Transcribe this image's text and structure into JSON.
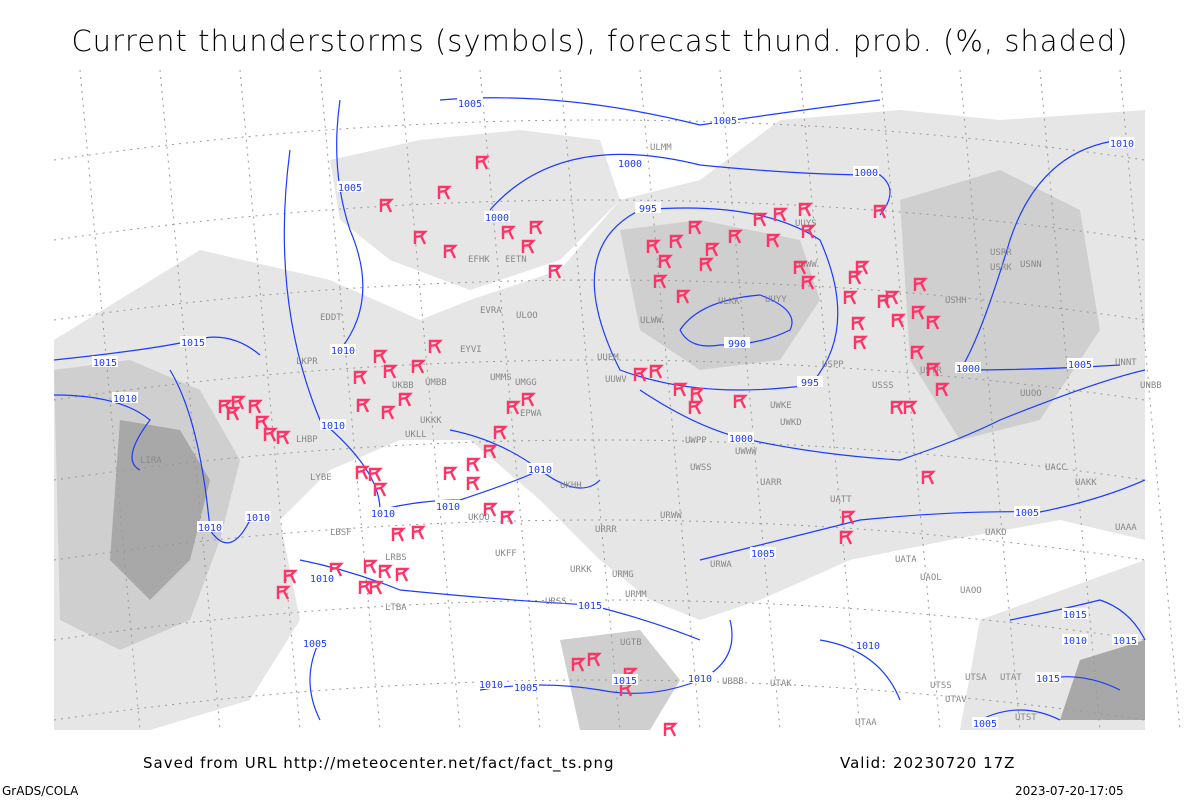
{
  "title": "Current thunderstorms (symbols), forecast thund. prob. (%, shaded)",
  "saved_from": "Saved from URL http://meteocenter.net/fact/fact_ts.png",
  "valid": "Valid: 20230720 17Z",
  "credit": "GrADS/COLA",
  "timestamp": "2023-07-20-17:05",
  "colors": {
    "isobar": "#1a3cff",
    "storm": "#ff3366",
    "shade_light": "#e6e6e6",
    "shade_mid": "#cfcfcf",
    "shade_dark": "#a8a8a8",
    "borders": "#9a9a9a"
  },
  "storm_symbol": "thunderstorm-flag-icon",
  "isobar_labels": [
    "1005",
    "1005",
    "1000",
    "1000",
    "1010",
    "1005",
    "1000",
    "995",
    "990",
    "995",
    "1000",
    "1005",
    "1015",
    "1015",
    "1010",
    "1010",
    "1010",
    "1000",
    "1010",
    "1010",
    "1010",
    "1010",
    "1010",
    "1005",
    "1005",
    "1010",
    "1015",
    "1005",
    "1010",
    "1015",
    "1010",
    "1015",
    "1015",
    "1010",
    "1005",
    "1015",
    "1010",
    "1005"
  ],
  "stations": [
    "ULMM",
    "ULOO",
    "UUYS",
    "ULWW",
    "ULKK",
    "UUYY",
    "UUWW",
    "UUEM",
    "USPP",
    "USSS",
    "USRR",
    "USRK",
    "USNN",
    "USHH",
    "USTR",
    "UUOO",
    "UUWV",
    "UWWW",
    "UWKE",
    "UWKD",
    "UWPP",
    "UWSS",
    "UARR",
    "UATT",
    "UACC",
    "UAKK",
    "UAAA",
    "UATA",
    "UAOL",
    "UAOO",
    "UAKD",
    "UMMS",
    "UMBB",
    "UMGG",
    "UKBB",
    "UKLL",
    "UKKK",
    "UKOO",
    "UKFF",
    "UKHH",
    "URKK",
    "URRR",
    "URWW",
    "URWA",
    "URMM",
    "URMG",
    "URSS",
    "UBBB",
    "UGTB",
    "EVRA",
    "EYVI",
    "EETN",
    "EFHK",
    "LKPR",
    "EPWA",
    "EDDT",
    "LHBP",
    "LYBE",
    "LBSF",
    "LRBS",
    "LTBA",
    "LIRA",
    "UTAA",
    "UTSS",
    "UTST",
    "UTSA",
    "UTAK",
    "UTAV",
    "UTAT",
    "UNBB",
    "UNNT"
  ]
}
